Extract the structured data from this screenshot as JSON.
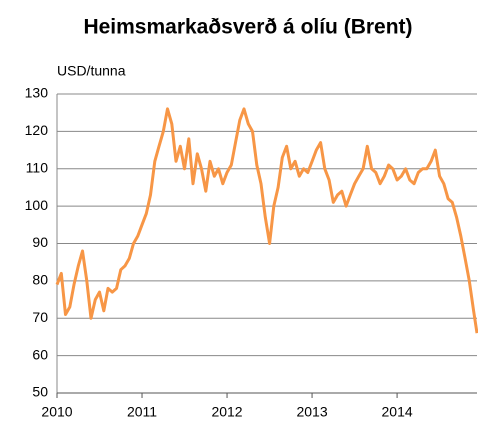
{
  "chart_data": {
    "type": "line",
    "title": "Heimsmarkaðsverð á olíu (Brent)",
    "y_label": "USD/tunna",
    "x": [
      2010.0,
      2010.05,
      2010.1,
      2010.15,
      2010.2,
      2010.25,
      2010.3,
      2010.35,
      2010.4,
      2010.45,
      2010.5,
      2010.55,
      2010.6,
      2010.65,
      2010.7,
      2010.75,
      2010.8,
      2010.85,
      2010.9,
      2010.95,
      2011.0,
      2011.05,
      2011.1,
      2011.15,
      2011.2,
      2011.25,
      2011.3,
      2011.35,
      2011.4,
      2011.45,
      2011.5,
      2011.55,
      2011.6,
      2011.65,
      2011.7,
      2011.75,
      2011.8,
      2011.85,
      2011.9,
      2011.95,
      2012.0,
      2012.05,
      2012.1,
      2012.15,
      2012.2,
      2012.25,
      2012.3,
      2012.35,
      2012.4,
      2012.45,
      2012.5,
      2012.55,
      2012.6,
      2012.65,
      2012.7,
      2012.75,
      2012.8,
      2012.85,
      2012.9,
      2012.95,
      2013.0,
      2013.05,
      2013.1,
      2013.15,
      2013.2,
      2013.25,
      2013.3,
      2013.35,
      2013.4,
      2013.45,
      2013.5,
      2013.55,
      2013.6,
      2013.65,
      2013.7,
      2013.75,
      2013.8,
      2013.85,
      2013.9,
      2013.95,
      2014.0,
      2014.05,
      2014.1,
      2014.15,
      2014.2,
      2014.25,
      2014.3,
      2014.35,
      2014.4,
      2014.45,
      2014.5,
      2014.55,
      2014.6,
      2014.65,
      2014.7,
      2014.75,
      2014.8,
      2014.85,
      2014.9,
      2014.94
    ],
    "values": [
      79,
      82,
      71,
      73,
      79,
      84,
      88,
      80,
      70,
      75,
      77,
      72,
      78,
      77,
      78,
      83,
      84,
      86,
      90,
      92,
      95,
      98,
      103,
      112,
      116,
      120,
      126,
      122,
      112,
      116,
      110,
      118,
      106,
      114,
      110,
      104,
      112,
      108,
      110,
      106,
      109,
      111,
      117,
      123,
      126,
      122,
      120,
      111,
      106,
      97,
      90,
      100,
      105,
      113,
      116,
      110,
      112,
      108,
      110,
      109,
      112,
      115,
      117,
      110,
      107,
      101,
      103,
      104,
      100,
      103,
      106,
      108,
      110,
      116,
      110,
      109,
      106,
      108,
      111,
      110,
      107,
      108,
      110,
      107,
      106,
      109,
      110,
      110,
      112,
      115,
      108,
      106,
      102,
      101,
      97,
      92,
      86,
      80,
      72,
      66
    ],
    "color": "#f79646",
    "xlim": [
      2010,
      2014.94
    ],
    "xticks": [
      2010,
      2011,
      2012,
      2013,
      2014
    ],
    "ylim": [
      50,
      130
    ],
    "yticks": [
      50,
      60,
      70,
      80,
      90,
      100,
      110,
      120,
      130
    ],
    "grid": true
  }
}
